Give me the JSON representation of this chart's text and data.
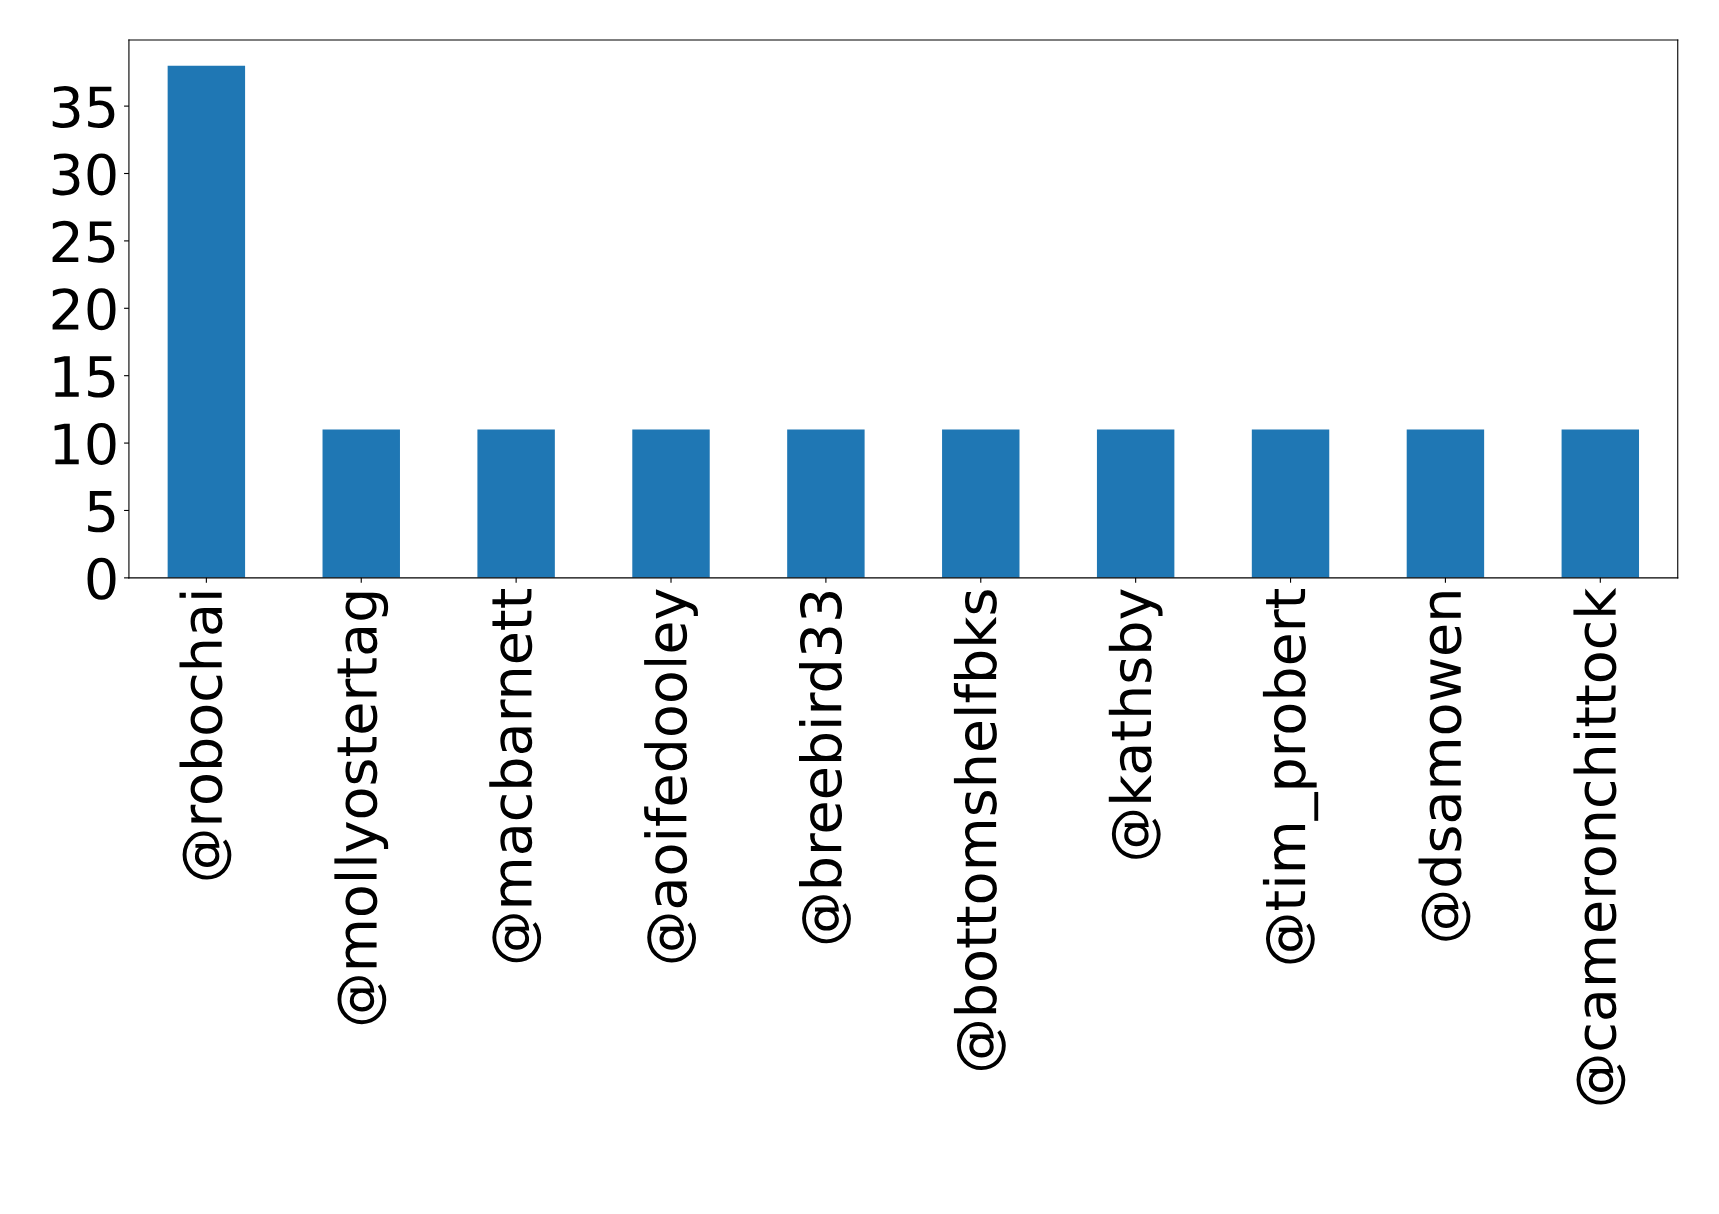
{
  "chart_data": {
    "type": "bar",
    "categories": [
      "@robochai",
      "@mollyostertag",
      "@macbarnett",
      "@aoifedooley",
      "@breebird33",
      "@bottomshelfbks",
      "@kathsby",
      "@tim_probert",
      "@dsamowen",
      "@cameronchittock"
    ],
    "values": [
      38,
      11,
      11,
      11,
      11,
      11,
      11,
      11,
      11,
      11
    ],
    "color": "#1f77b4",
    "ylim": [
      0,
      39.9
    ],
    "yticks": [
      0,
      5,
      10,
      15,
      20,
      25,
      30,
      35
    ],
    "grid": false,
    "legend": false
  }
}
